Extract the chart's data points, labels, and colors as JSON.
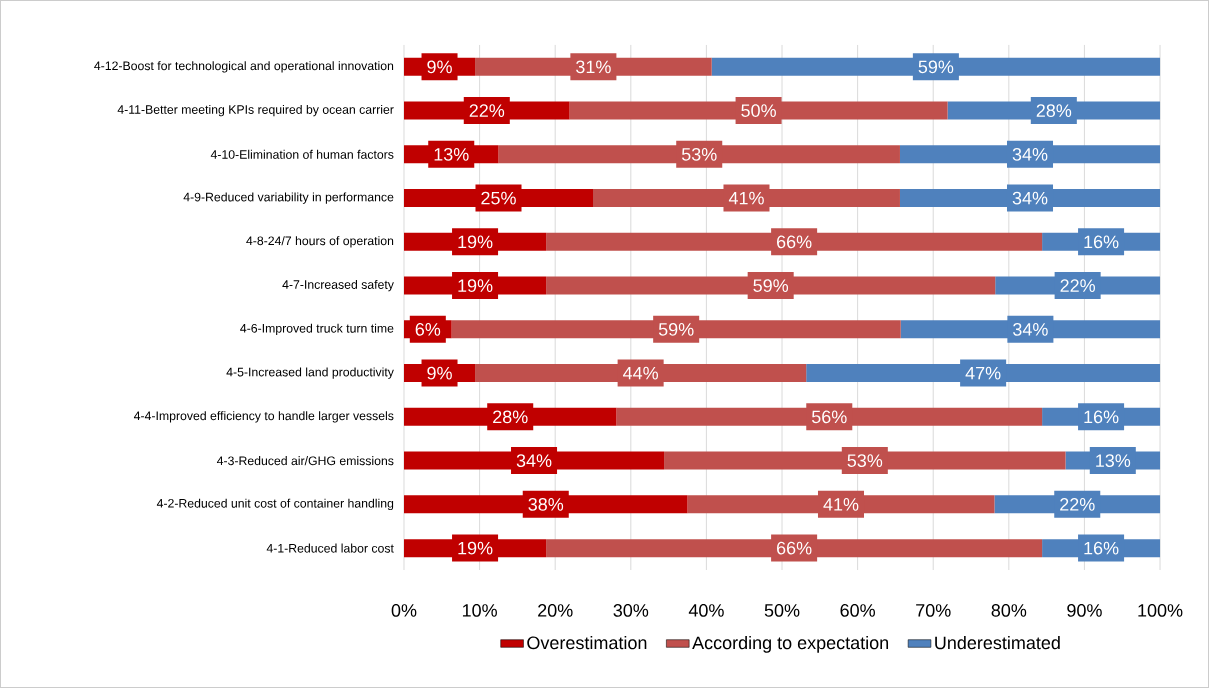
{
  "chart_data": {
    "type": "bar",
    "orientation": "horizontal",
    "stacked": true,
    "categories": [
      "4-12-Boost for technological and operational innovation",
      "4-11-Better meeting KPIs required by ocean carrier",
      "4-10-Elimination of human factors",
      "4-9-Reduced variability in performance",
      "4-8-24/7 hours of operation",
      "4-7-Increased safety",
      "4-6-Improved truck turn time",
      "4-5-Increased land productivity",
      "4-4-Improved efficiency to handle larger vessels",
      "4-3-Reduced air/GHG emissions",
      "4-2-Reduced unit cost of container handling",
      "4-1-Reduced labor cost"
    ],
    "series": [
      {
        "name": "Overestimation",
        "color": "#c00000",
        "values": [
          9.4,
          21.9,
          12.5,
          25.0,
          18.8,
          18.8,
          6.3,
          9.4,
          28.1,
          34.4,
          37.5,
          18.8
        ],
        "value_labels": [
          "9%",
          "22%",
          "13%",
          "25%",
          "19%",
          "19%",
          "6%",
          "9%",
          "28%",
          "34%",
          "38%",
          "19%"
        ]
      },
      {
        "name": "According to expectation",
        "color": "#c0504d",
        "values": [
          31.3,
          50.0,
          53.1,
          40.6,
          65.6,
          59.4,
          59.4,
          43.8,
          56.3,
          53.1,
          40.6,
          65.6
        ],
        "value_labels": [
          "31%",
          "50%",
          "53%",
          "41%",
          "66%",
          "59%",
          "59%",
          "44%",
          "56%",
          "53%",
          "41%",
          "66%"
        ]
      },
      {
        "name": "Underestimated",
        "color": "#4f81bd",
        "values": [
          59.3,
          28.1,
          34.4,
          34.4,
          15.6,
          21.8,
          34.3,
          46.8,
          15.6,
          12.5,
          21.9,
          15.6
        ],
        "value_labels": [
          "59%",
          "28%",
          "34%",
          "34%",
          "16%",
          "22%",
          "34%",
          "47%",
          "16%",
          "13%",
          "22%",
          "16%"
        ]
      }
    ],
    "xlim": [
      0,
      100
    ],
    "xticks": [
      {
        "value": 0,
        "label": "0%"
      },
      {
        "value": 10,
        "label": "10%"
      },
      {
        "value": 20,
        "label": "20%"
      },
      {
        "value": 30,
        "label": "30%"
      },
      {
        "value": 40,
        "label": "40%"
      },
      {
        "value": 50,
        "label": "50%"
      },
      {
        "value": 60,
        "label": "60%"
      },
      {
        "value": 70,
        "label": "70%"
      },
      {
        "value": 80,
        "label": "80%"
      },
      {
        "value": 90,
        "label": "90%"
      },
      {
        "value": 100,
        "label": "100%"
      }
    ],
    "grid": "x",
    "legend": "bottom"
  }
}
